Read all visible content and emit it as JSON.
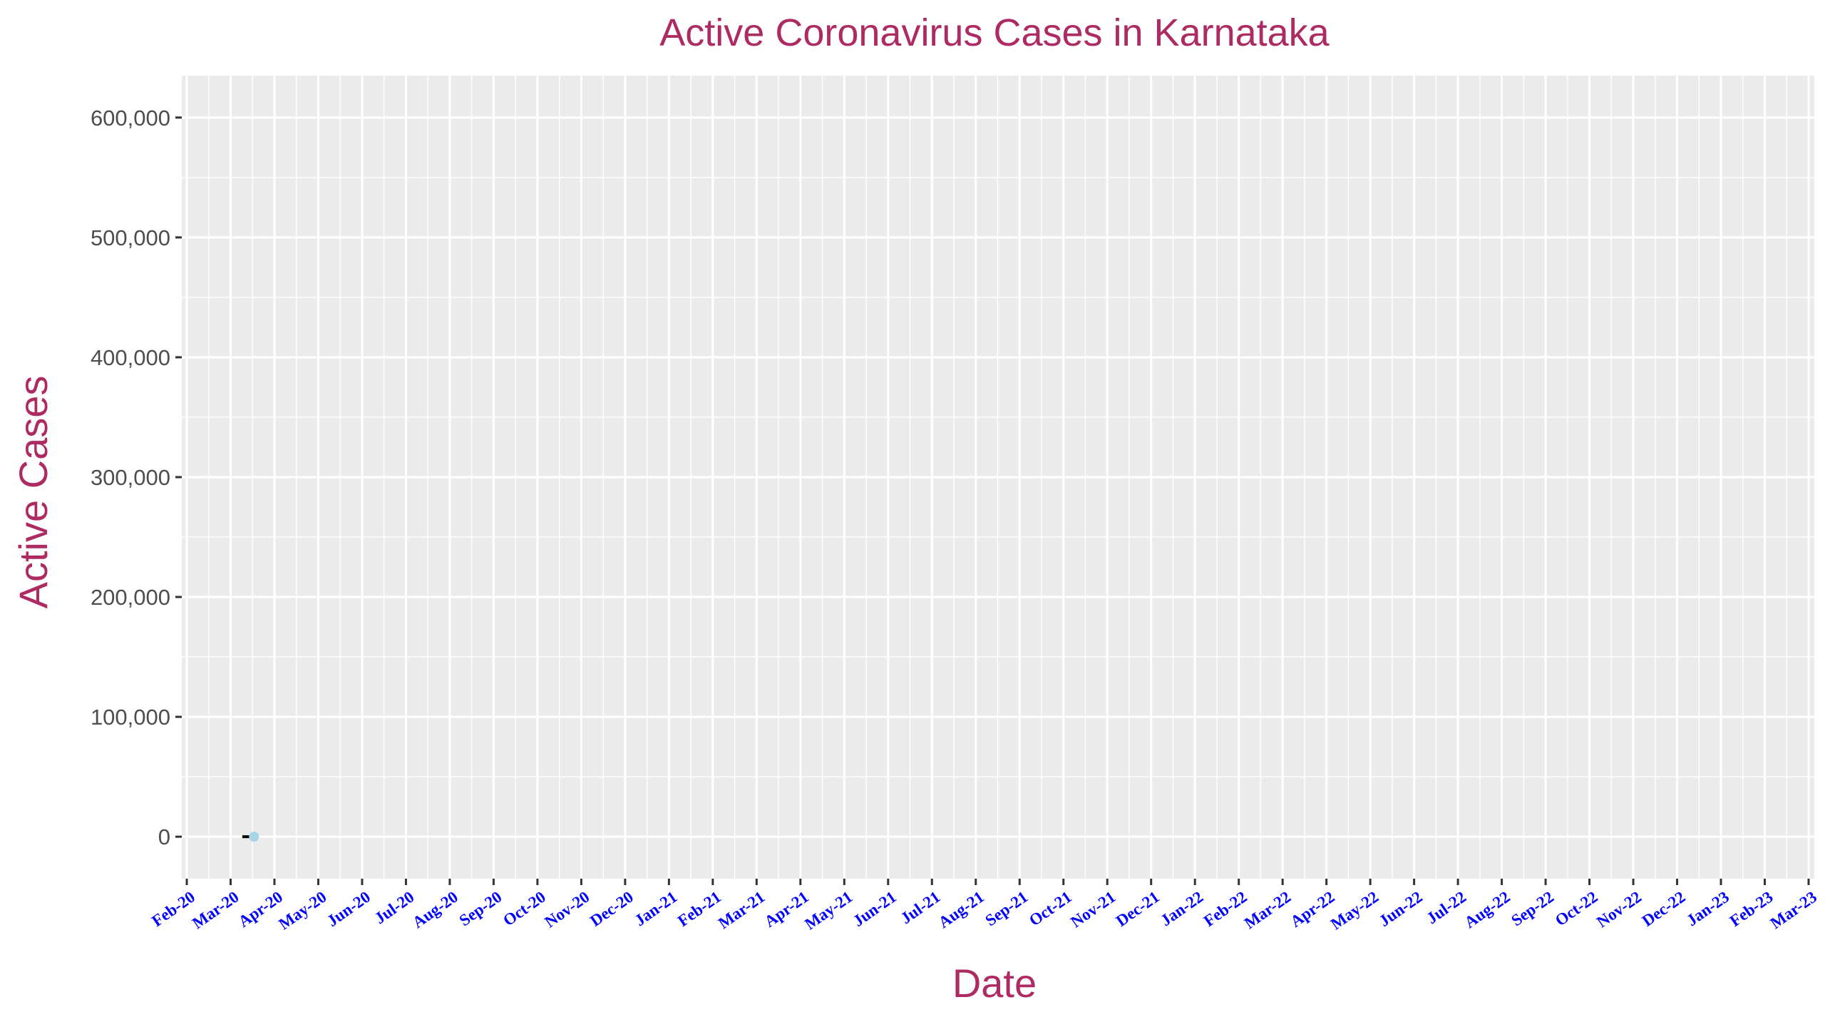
{
  "chart_data": {
    "type": "line",
    "title": "Active Coronavirus Cases in Karnataka",
    "xlabel": "Date",
    "ylabel": "Active Cases",
    "x_tick_labels": [
      "Feb-20",
      "Mar-20",
      "Apr-20",
      "May-20",
      "Jun-20",
      "Jul-20",
      "Aug-20",
      "Sep-20",
      "Oct-20",
      "Nov-20",
      "Dec-20",
      "Jan-21",
      "Feb-21",
      "Mar-21",
      "Apr-21",
      "May-21",
      "Jun-21",
      "Jul-21",
      "Aug-21",
      "Sep-21",
      "Oct-21",
      "Nov-21",
      "Dec-21",
      "Jan-22",
      "Feb-22",
      "Mar-22",
      "Apr-22",
      "May-22",
      "Jun-22",
      "Jul-22",
      "Aug-22",
      "Sep-22",
      "Oct-22",
      "Nov-22",
      "Dec-22",
      "Jan-23",
      "Feb-23",
      "Mar-23"
    ],
    "y_tick_values": [
      0,
      100000,
      200000,
      300000,
      400000,
      500000,
      600000
    ],
    "y_tick_labels": [
      "0",
      "100,000",
      "200,000",
      "300,000",
      "400,000",
      "500,000",
      "600,000"
    ],
    "ylim": [
      -35000,
      635000
    ],
    "xlim_months": [
      "Feb-20",
      "Mar-23"
    ],
    "grid": true,
    "legend": "none",
    "series": [
      {
        "type": "line",
        "color": "#000000",
        "x": [
          "2020-03-09",
          "2020-03-14"
        ],
        "y": [
          0,
          0
        ]
      },
      {
        "type": "scatter",
        "color": "#a6d4e8",
        "x": [
          "2020-03-17"
        ],
        "y": [
          6
        ]
      }
    ],
    "colors": {
      "panel_background": "#ebebeb",
      "grid": "#ffffff",
      "title": "#ad2a63",
      "x_tick_label": "#0000ff",
      "y_tick_label": "#4d4d4d"
    }
  }
}
